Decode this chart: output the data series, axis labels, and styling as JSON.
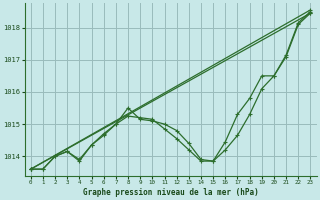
{
  "xlabel": "Graphe pression niveau de la mer (hPa)",
  "bg_color": "#c8e8e8",
  "grid_color": "#99bbbb",
  "line_color": "#2d6e2d",
  "text_color": "#1a4a1a",
  "ylim": [
    1013.4,
    1018.75
  ],
  "xlim": [
    -0.5,
    23.5
  ],
  "yticks": [
    1014,
    1015,
    1016,
    1017,
    1018
  ],
  "xticks": [
    0,
    1,
    2,
    3,
    4,
    5,
    6,
    7,
    8,
    9,
    10,
    11,
    12,
    13,
    14,
    15,
    16,
    17,
    18,
    19,
    20,
    21,
    22,
    23
  ],
  "straight_lines": [
    [
      [
        0,
        1013.6
      ],
      [
        23,
        1018.45
      ]
    ],
    [
      [
        0,
        1013.6
      ],
      [
        23,
        1018.55
      ]
    ]
  ],
  "wavy_series": [
    [
      1013.6,
      1013.6,
      1014.0,
      1014.15,
      1013.9,
      1014.35,
      1014.7,
      1015.0,
      1015.5,
      1015.15,
      1015.1,
      1015.0,
      1014.8,
      1014.4,
      1013.9,
      1013.85,
      1014.2,
      1014.65,
      1015.3,
      1016.1,
      1016.5,
      1017.1,
      1018.1,
      1018.45
    ],
    [
      1013.6,
      1013.6,
      1014.0,
      1014.15,
      1013.85,
      1014.35,
      1014.65,
      1015.0,
      1015.25,
      1015.2,
      1015.15,
      1014.85,
      1014.55,
      1014.2,
      1013.85,
      1013.85,
      1014.45,
      1015.3,
      1015.8,
      1016.5,
      1016.5,
      1017.15,
      1018.15,
      1018.5
    ]
  ],
  "figsize": [
    3.2,
    2.0
  ],
  "dpi": 100
}
